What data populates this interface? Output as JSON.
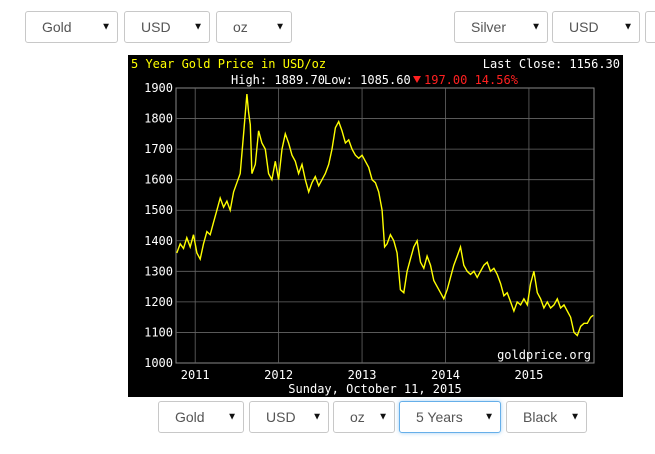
{
  "top_left_selectors": [
    {
      "value": "Gold"
    },
    {
      "value": "USD"
    },
    {
      "value": "oz"
    }
  ],
  "top_right_selectors": [
    {
      "value": "Silver"
    },
    {
      "value": "USD"
    }
  ],
  "bottom_selectors": [
    {
      "value": "Gold"
    },
    {
      "value": "USD"
    },
    {
      "value": "oz"
    },
    {
      "value": "5 Years"
    },
    {
      "value": "Black"
    }
  ],
  "icons": {
    "dropdown": "chevron-down-icon",
    "change_down": "triangle-down-icon"
  },
  "colors": {
    "background": "#000000",
    "title": "#ffff00",
    "line": "#ffff00",
    "text": "#ffffff",
    "change_negative": "#ff2020",
    "grid": "#777777"
  },
  "chart_data": {
    "type": "line",
    "title": "5 Year Gold Price in USD/oz",
    "last_close_label": "Last Close: 1156.30",
    "high_label": "High: 1889.70",
    "low_label": "Low: 1085.60",
    "change_label": "197.00 14.56%",
    "watermark": "goldprice.org",
    "date_label": "Sunday, October 11, 2015",
    "xlabel": "",
    "ylabel": "",
    "ylim": [
      1000,
      1900
    ],
    "yticks": [
      1000,
      1100,
      1200,
      1300,
      1400,
      1500,
      1600,
      1700,
      1800,
      1900
    ],
    "xticks": [
      "2011",
      "2012",
      "2013",
      "2014",
      "2015"
    ],
    "grid": true,
    "series": [
      {
        "values": [
          [
            2010.78,
            1360
          ],
          [
            2010.82,
            1390
          ],
          [
            2010.86,
            1375
          ],
          [
            2010.9,
            1410
          ],
          [
            2010.94,
            1380
          ],
          [
            2010.98,
            1420
          ],
          [
            2011.02,
            1360
          ],
          [
            2011.06,
            1340
          ],
          [
            2011.1,
            1390
          ],
          [
            2011.14,
            1430
          ],
          [
            2011.18,
            1420
          ],
          [
            2011.22,
            1460
          ],
          [
            2011.26,
            1500
          ],
          [
            2011.3,
            1540
          ],
          [
            2011.34,
            1510
          ],
          [
            2011.38,
            1530
          ],
          [
            2011.42,
            1500
          ],
          [
            2011.46,
            1560
          ],
          [
            2011.5,
            1590
          ],
          [
            2011.54,
            1620
          ],
          [
            2011.58,
            1750
          ],
          [
            2011.62,
            1880
          ],
          [
            2011.64,
            1820
          ],
          [
            2011.66,
            1780
          ],
          [
            2011.68,
            1620
          ],
          [
            2011.72,
            1650
          ],
          [
            2011.76,
            1760
          ],
          [
            2011.8,
            1720
          ],
          [
            2011.84,
            1700
          ],
          [
            2011.88,
            1620
          ],
          [
            2011.92,
            1600
          ],
          [
            2011.96,
            1660
          ],
          [
            2012.0,
            1600
          ],
          [
            2012.04,
            1700
          ],
          [
            2012.08,
            1750
          ],
          [
            2012.12,
            1720
          ],
          [
            2012.16,
            1680
          ],
          [
            2012.2,
            1660
          ],
          [
            2012.24,
            1620
          ],
          [
            2012.28,
            1650
          ],
          [
            2012.32,
            1600
          ],
          [
            2012.36,
            1560
          ],
          [
            2012.4,
            1590
          ],
          [
            2012.44,
            1610
          ],
          [
            2012.48,
            1580
          ],
          [
            2012.52,
            1600
          ],
          [
            2012.56,
            1620
          ],
          [
            2012.6,
            1650
          ],
          [
            2012.64,
            1700
          ],
          [
            2012.68,
            1770
          ],
          [
            2012.72,
            1790
          ],
          [
            2012.76,
            1760
          ],
          [
            2012.8,
            1720
          ],
          [
            2012.84,
            1730
          ],
          [
            2012.88,
            1700
          ],
          [
            2012.92,
            1680
          ],
          [
            2012.96,
            1670
          ],
          [
            2013.0,
            1680
          ],
          [
            2013.04,
            1660
          ],
          [
            2013.08,
            1640
          ],
          [
            2013.12,
            1600
          ],
          [
            2013.16,
            1590
          ],
          [
            2013.2,
            1560
          ],
          [
            2013.24,
            1500
          ],
          [
            2013.27,
            1380
          ],
          [
            2013.3,
            1390
          ],
          [
            2013.34,
            1420
          ],
          [
            2013.38,
            1400
          ],
          [
            2013.42,
            1360
          ],
          [
            2013.46,
            1240
          ],
          [
            2013.5,
            1230
          ],
          [
            2013.54,
            1300
          ],
          [
            2013.58,
            1340
          ],
          [
            2013.62,
            1380
          ],
          [
            2013.66,
            1400
          ],
          [
            2013.7,
            1330
          ],
          [
            2013.74,
            1310
          ],
          [
            2013.78,
            1350
          ],
          [
            2013.82,
            1320
          ],
          [
            2013.86,
            1270
          ],
          [
            2013.9,
            1250
          ],
          [
            2013.94,
            1230
          ],
          [
            2013.98,
            1210
          ],
          [
            2014.02,
            1240
          ],
          [
            2014.06,
            1280
          ],
          [
            2014.1,
            1320
          ],
          [
            2014.14,
            1350
          ],
          [
            2014.18,
            1380
          ],
          [
            2014.22,
            1320
          ],
          [
            2014.26,
            1300
          ],
          [
            2014.3,
            1290
          ],
          [
            2014.34,
            1300
          ],
          [
            2014.38,
            1280
          ],
          [
            2014.42,
            1300
          ],
          [
            2014.46,
            1320
          ],
          [
            2014.5,
            1330
          ],
          [
            2014.54,
            1300
          ],
          [
            2014.58,
            1310
          ],
          [
            2014.62,
            1290
          ],
          [
            2014.66,
            1260
          ],
          [
            2014.7,
            1220
          ],
          [
            2014.74,
            1230
          ],
          [
            2014.78,
            1200
          ],
          [
            2014.82,
            1170
          ],
          [
            2014.86,
            1200
          ],
          [
            2014.9,
            1190
          ],
          [
            2014.94,
            1210
          ],
          [
            2014.98,
            1190
          ],
          [
            2015.02,
            1260
          ],
          [
            2015.06,
            1300
          ],
          [
            2015.1,
            1230
          ],
          [
            2015.14,
            1210
          ],
          [
            2015.18,
            1180
          ],
          [
            2015.22,
            1200
          ],
          [
            2015.26,
            1180
          ],
          [
            2015.3,
            1190
          ],
          [
            2015.34,
            1210
          ],
          [
            2015.38,
            1180
          ],
          [
            2015.42,
            1190
          ],
          [
            2015.46,
            1170
          ],
          [
            2015.5,
            1150
          ],
          [
            2015.54,
            1100
          ],
          [
            2015.58,
            1090
          ],
          [
            2015.62,
            1120
          ],
          [
            2015.66,
            1130
          ],
          [
            2015.7,
            1130
          ],
          [
            2015.74,
            1150
          ],
          [
            2015.77,
            1156
          ]
        ]
      }
    ]
  }
}
